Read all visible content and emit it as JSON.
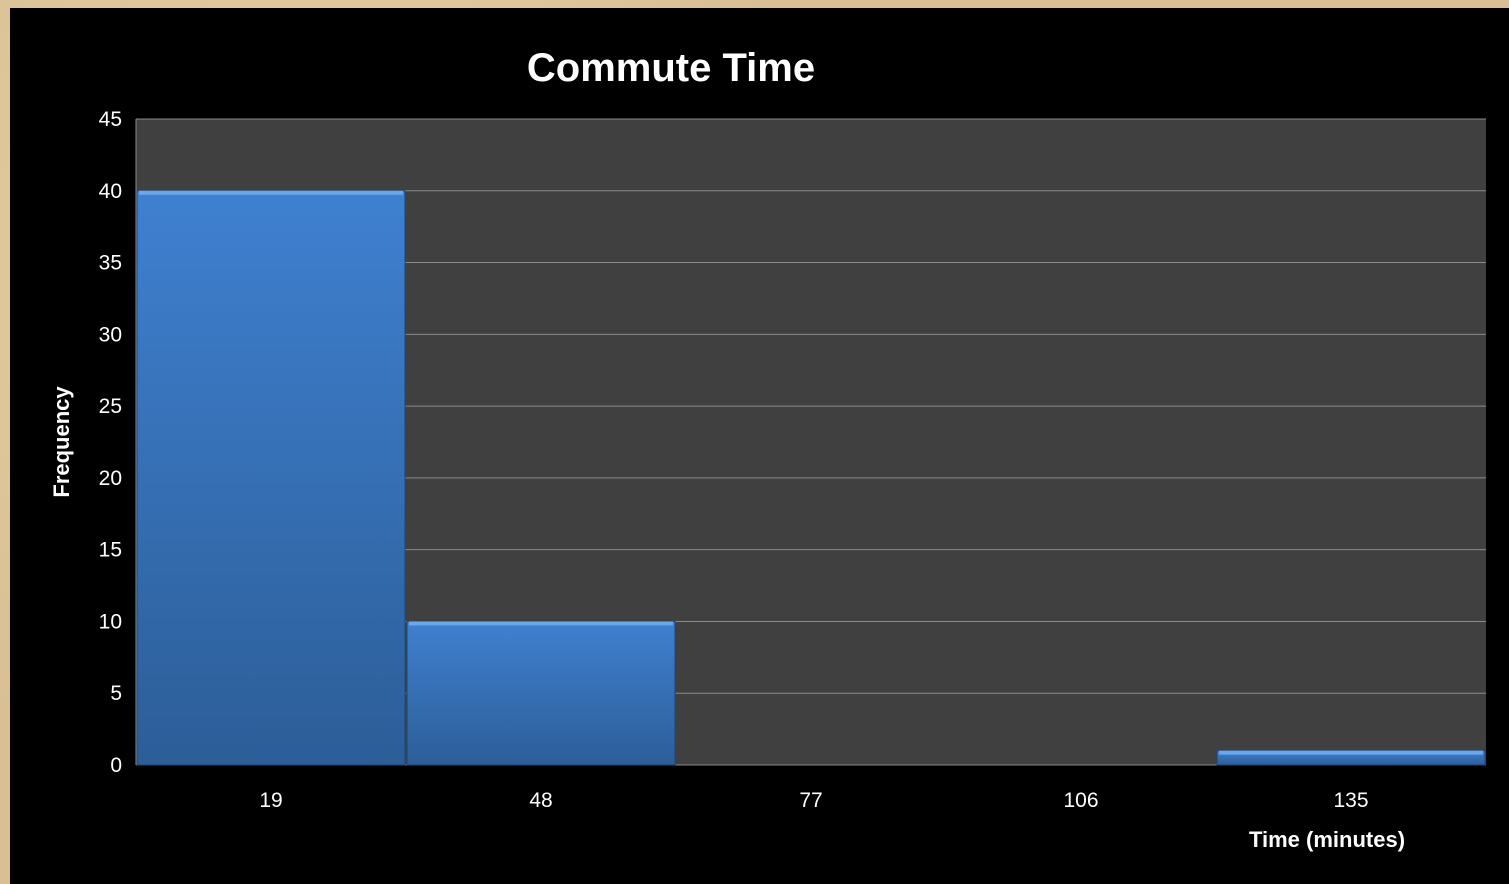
{
  "chart_data": {
    "type": "bar",
    "title": "Commute Time",
    "xlabel": "Time (minutes)",
    "ylabel": "Frequency",
    "categories": [
      "19",
      "48",
      "77",
      "106",
      "135"
    ],
    "values": [
      40,
      10,
      0,
      0,
      1
    ],
    "ylim": [
      0,
      45
    ],
    "yticks": [
      0,
      5,
      10,
      15,
      20,
      25,
      30,
      35,
      40,
      45
    ],
    "grid": true,
    "legend": "none",
    "colors": {
      "bar": "#3f80d0",
      "bar_top": "#6aa8ec",
      "bar_bottom": "#2c5e98",
      "plot_background": "#404040",
      "frame_background": "#000000",
      "gridline": "#8a8a8a",
      "text": "#ffffff"
    }
  }
}
